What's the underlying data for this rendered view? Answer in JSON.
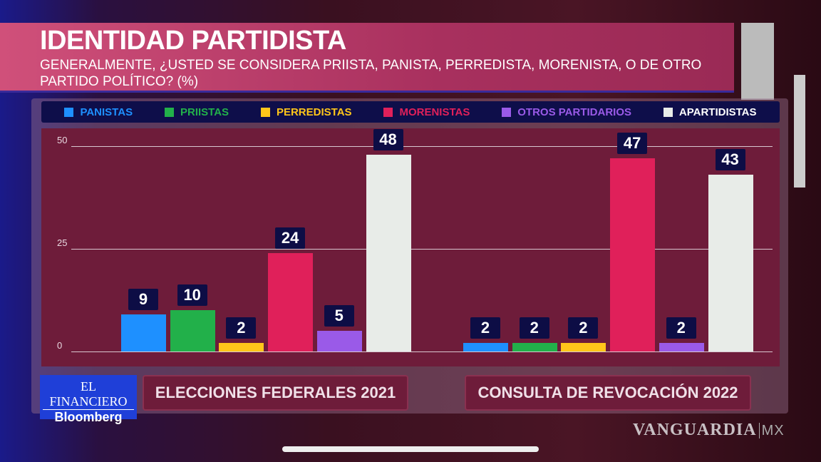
{
  "header": {
    "title": "IDENTIDAD PARTIDISTA",
    "subtitle": "GENERALMENTE, ¿USTED SE CONSIDERA PRIISTA, PANISTA, PERREDISTA, MORENISTA, O DE OTRO PARTIDO POLÍTICO? (%)"
  },
  "branding": {
    "logo_top": "EL FINANCIERO",
    "logo_bottom": "Bloomberg",
    "watermark": "VANGUARDIA",
    "watermark_suffix": "MX"
  },
  "chart_data": {
    "type": "bar",
    "title": "IDENTIDAD PARTIDISTA",
    "categories": [
      "ELECCIONES FEDERALES 2021",
      "CONSULTA DE REVOCACIÓN 2022"
    ],
    "series": [
      {
        "name": "PANISTAS",
        "color": "#1e90ff",
        "values": [
          9,
          2
        ]
      },
      {
        "name": "PRIISTAS",
        "color": "#22b04a",
        "values": [
          10,
          2
        ]
      },
      {
        "name": "PERREDISTAS",
        "color": "#ffc61a",
        "values": [
          2,
          2
        ]
      },
      {
        "name": "MORENISTAS",
        "color": "#e0205a",
        "values": [
          24,
          47
        ]
      },
      {
        "name": "OTROS PARTIDARIOS",
        "color": "#9a5ae8",
        "values": [
          5,
          2
        ]
      },
      {
        "name": "APARTIDISTAS",
        "color": "#e8ece8",
        "values": [
          48,
          43
        ]
      }
    ],
    "yticks": [
      "0",
      "25",
      "50"
    ],
    "ylim": [
      0,
      50
    ],
    "grid": true,
    "legend": "top"
  }
}
